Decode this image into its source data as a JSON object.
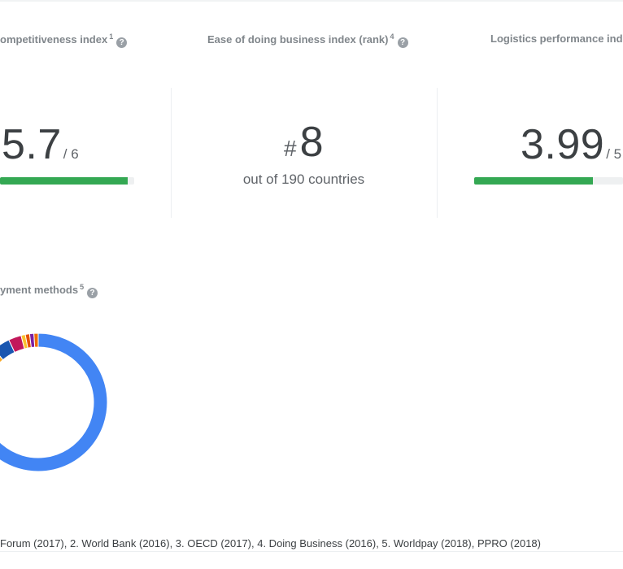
{
  "metrics": [
    {
      "title": "ompetitiveness index",
      "footnote": "1",
      "value": "5.7",
      "denominator": "/ 6",
      "progress": 0.95
    },
    {
      "title": "Ease of doing business index (rank)",
      "footnote": "4",
      "hash": "#",
      "value": "8",
      "subtitle": "out of 190 countries"
    },
    {
      "title": "Logistics performance inde",
      "footnote": "",
      "value": "3.99",
      "denominator": "/ 5",
      "progress": 0.8
    }
  ],
  "payment": {
    "title": "yment methods",
    "footnote": "5"
  },
  "help_glyph": "?",
  "chart_data": {
    "type": "pie",
    "style": "donut",
    "values": [
      82,
      7,
      4,
      3,
      1,
      1,
      1,
      1
    ],
    "colors": [
      "#4285f4",
      "#f9a825",
      "#1a56b0",
      "#c2185b",
      "#fbc02d",
      "#e65100",
      "#7b1fa2",
      "#ef6c00"
    ]
  },
  "footer": {
    "sources": "Forum (2017), 2. World Bank (2016), 3. OECD (2017), 4. Doing Business (2016), 5. Worldpay (2018), PPRO (2018)"
  }
}
